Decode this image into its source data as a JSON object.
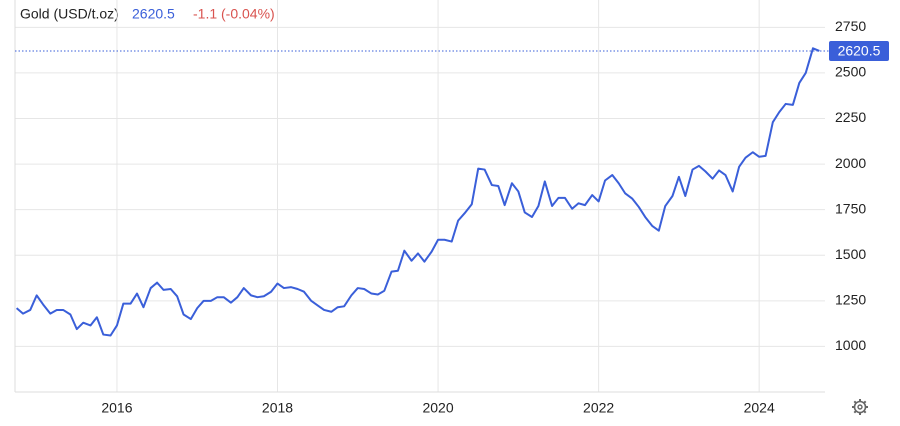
{
  "chart_data": {
    "type": "line",
    "title": "Gold (USD/t.oz)",
    "last_price": 2620.5,
    "change": "-1.1 (-0.04%)",
    "x": [
      2014.75,
      2014.83,
      2014.92,
      2015.0,
      2015.08,
      2015.17,
      2015.25,
      2015.33,
      2015.42,
      2015.5,
      2015.58,
      2015.67,
      2015.75,
      2015.83,
      2015.92,
      2016.0,
      2016.08,
      2016.17,
      2016.25,
      2016.33,
      2016.42,
      2016.5,
      2016.58,
      2016.67,
      2016.75,
      2016.83,
      2016.92,
      2017.0,
      2017.08,
      2017.17,
      2017.25,
      2017.33,
      2017.42,
      2017.5,
      2017.58,
      2017.67,
      2017.75,
      2017.83,
      2017.92,
      2018.0,
      2018.08,
      2018.17,
      2018.25,
      2018.33,
      2018.42,
      2018.5,
      2018.58,
      2018.67,
      2018.75,
      2018.83,
      2018.92,
      2019.0,
      2019.08,
      2019.17,
      2019.25,
      2019.33,
      2019.42,
      2019.5,
      2019.58,
      2019.67,
      2019.75,
      2019.83,
      2019.92,
      2020.0,
      2020.08,
      2020.17,
      2020.25,
      2020.33,
      2020.42,
      2020.5,
      2020.58,
      2020.67,
      2020.75,
      2020.83,
      2020.92,
      2021.0,
      2021.08,
      2021.17,
      2021.25,
      2021.33,
      2021.42,
      2021.5,
      2021.58,
      2021.67,
      2021.75,
      2021.83,
      2021.92,
      2022.0,
      2022.08,
      2022.17,
      2022.25,
      2022.33,
      2022.42,
      2022.5,
      2022.58,
      2022.67,
      2022.75,
      2022.83,
      2022.92,
      2023.0,
      2023.08,
      2023.17,
      2023.25,
      2023.33,
      2023.42,
      2023.5,
      2023.58,
      2023.67,
      2023.75,
      2023.83,
      2023.92,
      2024.0,
      2024.08,
      2024.17,
      2024.25,
      2024.33,
      2024.42,
      2024.5,
      2024.58,
      2024.67,
      2024.75
    ],
    "series": [
      {
        "name": "Gold",
        "color": "#3a5fd9",
        "values": [
          1210,
          1180,
          1200,
          1280,
          1230,
          1180,
          1200,
          1200,
          1175,
          1095,
          1130,
          1115,
          1160,
          1065,
          1060,
          1115,
          1235,
          1235,
          1290,
          1215,
          1320,
          1350,
          1310,
          1315,
          1275,
          1175,
          1150,
          1210,
          1250,
          1250,
          1270,
          1270,
          1240,
          1270,
          1320,
          1280,
          1270,
          1275,
          1300,
          1345,
          1320,
          1325,
          1315,
          1300,
          1250,
          1225,
          1200,
          1190,
          1215,
          1220,
          1280,
          1320,
          1315,
          1290,
          1285,
          1305,
          1410,
          1415,
          1525,
          1470,
          1510,
          1465,
          1520,
          1585,
          1585,
          1575,
          1690,
          1730,
          1780,
          1975,
          1970,
          1885,
          1880,
          1775,
          1895,
          1850,
          1735,
          1710,
          1770,
          1905,
          1770,
          1815,
          1815,
          1755,
          1785,
          1775,
          1830,
          1795,
          1910,
          1940,
          1895,
          1840,
          1810,
          1765,
          1710,
          1660,
          1635,
          1770,
          1825,
          1930,
          1825,
          1970,
          1990,
          1960,
          1920,
          1965,
          1940,
          1850,
          1985,
          2035,
          2065,
          2040,
          2045,
          2230,
          2285,
          2330,
          2325,
          2445,
          2500,
          2635,
          2620.5
        ]
      }
    ],
    "xlim": [
      2014.73,
      2024.82
    ],
    "xticks": [
      2016,
      2018,
      2020,
      2022,
      2024
    ],
    "ylim": [
      750,
      2900
    ],
    "yticks": [
      1000,
      1250,
      1500,
      1750,
      2000,
      2250,
      2500,
      2750
    ],
    "grid": true
  }
}
